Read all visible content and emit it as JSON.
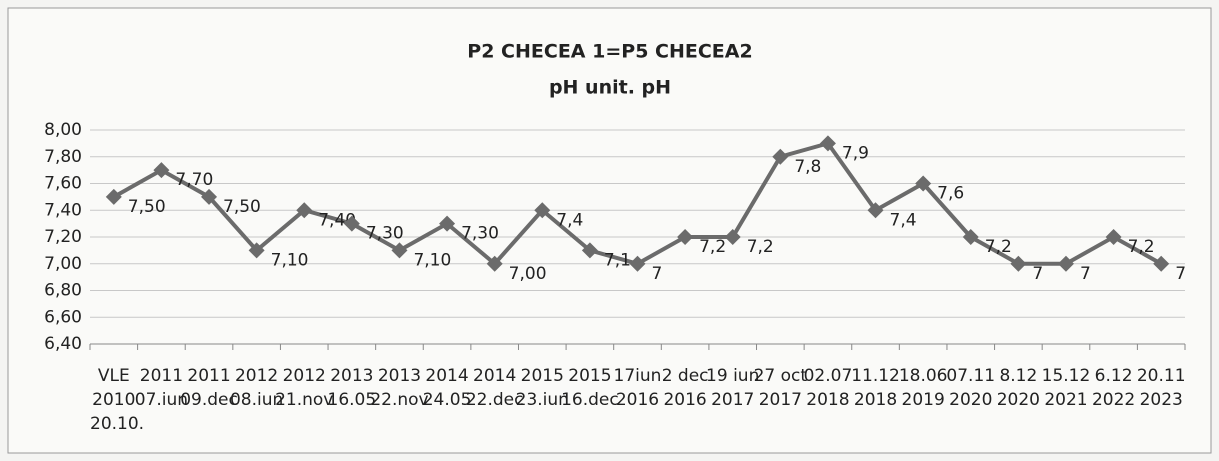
{
  "chart_data": {
    "type": "line",
    "title": "P2 CHECEA 1=P5 CHECEA2",
    "subtitle": "pH unit. pH",
    "categories": [
      "VLE\n2010\n20.10.",
      "2011\n07.iun",
      "2011\n09.dec",
      "2012\n08.iun",
      "2012\n21.nov",
      "2013\n16.05",
      "2013\n22.nov",
      "2014\n24.05",
      "2014\n22.dec",
      "2015\n23.iun",
      "2015\n16.dec",
      "17iun\n2016",
      "2 dec\n2016",
      "19 iun\n2017",
      "27 oct\n2017",
      "02.07\n2018",
      "11.12\n2018",
      "18.06\n2019",
      "07.11\n2020",
      "8.12\n2020",
      "15.12\n2021",
      "6.12\n2022",
      "20.11\n2023"
    ],
    "series": [
      {
        "name": "pH",
        "color": "#6b6b6b",
        "values": [
          7.5,
          7.7,
          7.5,
          7.1,
          7.4,
          7.3,
          7.1,
          7.3,
          7.0,
          7.4,
          7.1,
          7.0,
          7.2,
          7.2,
          7.8,
          7.9,
          7.4,
          7.6,
          7.2,
          7.0,
          7.0,
          7.2,
          7.0
        ],
        "value_labels": [
          "7,50",
          "7,70",
          "7,50",
          "7,10",
          "7,40",
          "7,30",
          "7,10",
          "7,30",
          "7,00",
          "7,4",
          "7,1",
          "7",
          "7,2",
          "7,2",
          "7,8",
          "7,9",
          "7,4",
          "7,6",
          "7,2",
          "7",
          "7",
          "7,2",
          "7"
        ]
      }
    ],
    "ylim": [
      6.4,
      8.0
    ],
    "yticks": [
      {
        "value": 6.4,
        "label": "6,40"
      },
      {
        "value": 6.6,
        "label": "6,60"
      },
      {
        "value": 6.8,
        "label": "6,80"
      },
      {
        "value": 7.0,
        "label": "7,00"
      },
      {
        "value": 7.2,
        "label": "7,20"
      },
      {
        "value": 7.4,
        "label": "7,40"
      },
      {
        "value": 7.6,
        "label": "7,60"
      },
      {
        "value": 7.8,
        "label": "7,80"
      },
      {
        "value": 8.0,
        "label": "8,00"
      }
    ],
    "grid": true
  }
}
